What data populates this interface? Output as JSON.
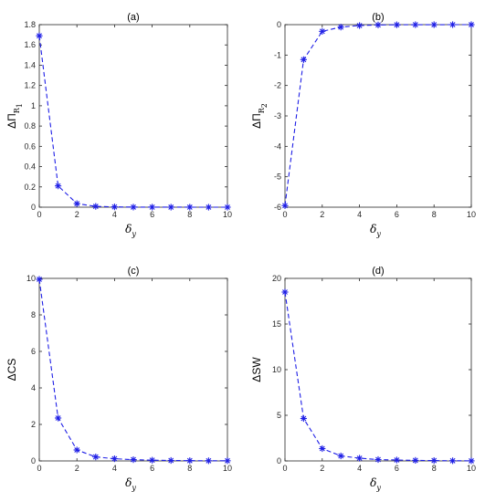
{
  "chart_data": [
    {
      "type": "line",
      "title": "(a)",
      "xlabel": "δ",
      "xlabel_sub": "y",
      "ylabel": "ΔΠ",
      "ylabel_sub": "R",
      "ylabel_subsub": "1",
      "x": [
        0,
        1,
        2,
        3,
        4,
        5,
        6,
        7,
        8,
        9,
        10
      ],
      "series": [
        {
          "values": [
            1.69,
            0.21,
            0.035,
            0.008,
            0.003,
            0.001,
            0.0005,
            0.0002,
            0.0001,
            0,
            0
          ]
        }
      ],
      "xlim": [
        0,
        10
      ],
      "ylim": [
        0,
        1.8
      ],
      "xticks": [
        0,
        2,
        4,
        6,
        8,
        10
      ],
      "yticks": [
        0,
        0.2,
        0.4,
        0.6,
        0.8,
        1,
        1.2,
        1.4,
        1.6,
        1.8
      ],
      "ytick_labels": [
        "0",
        "0.2",
        "0.4",
        "0.6",
        "0.8",
        "1",
        "1.2",
        "1.4",
        "1.6",
        "1.8"
      ],
      "grid": false,
      "line_style": "dashed",
      "marker": "asterisk",
      "color": "#1f1fe6"
    },
    {
      "type": "line",
      "title": "(b)",
      "xlabel": "δ",
      "xlabel_sub": "y",
      "ylabel": "ΔΠ",
      "ylabel_sub": "R",
      "ylabel_subsub": "2",
      "x": [
        0,
        1,
        2,
        3,
        4,
        5,
        6,
        7,
        8,
        9,
        10
      ],
      "series": [
        {
          "values": [
            -5.95,
            -1.15,
            -0.22,
            -0.08,
            -0.03,
            -0.01,
            -0.005,
            -0.002,
            -0.001,
            0,
            0
          ]
        }
      ],
      "xlim": [
        0,
        10
      ],
      "ylim": [
        -6,
        0
      ],
      "xticks": [
        0,
        2,
        4,
        6,
        8,
        10
      ],
      "yticks": [
        -6,
        -5,
        -4,
        -3,
        -2,
        -1,
        0
      ],
      "ytick_labels": [
        "-6",
        "-5",
        "-4",
        "-3",
        "-2",
        "-1",
        "0"
      ],
      "grid": false,
      "line_style": "dashed",
      "marker": "asterisk",
      "color": "#1f1fe6"
    },
    {
      "type": "line",
      "title": "(c)",
      "xlabel": "δ",
      "xlabel_sub": "y",
      "ylabel": "ΔCS",
      "x": [
        0,
        1,
        2,
        3,
        4,
        5,
        6,
        7,
        8,
        9,
        10
      ],
      "series": [
        {
          "values": [
            9.95,
            2.35,
            0.6,
            0.22,
            0.12,
            0.07,
            0.04,
            0.025,
            0.015,
            0.01,
            0.008
          ]
        }
      ],
      "xlim": [
        0,
        10
      ],
      "ylim": [
        0,
        10
      ],
      "xticks": [
        0,
        2,
        4,
        6,
        8,
        10
      ],
      "yticks": [
        0,
        2,
        4,
        6,
        8,
        10
      ],
      "ytick_labels": [
        "0",
        "2",
        "4",
        "6",
        "8",
        "10"
      ],
      "grid": false,
      "line_style": "dashed",
      "marker": "asterisk",
      "color": "#1f1fe6"
    },
    {
      "type": "line",
      "title": "(d)",
      "xlabel": "δ",
      "xlabel_sub": "y",
      "ylabel": "ΔSW",
      "x": [
        0,
        1,
        2,
        3,
        4,
        5,
        6,
        7,
        8,
        9,
        10
      ],
      "series": [
        {
          "values": [
            18.5,
            4.65,
            1.35,
            0.55,
            0.3,
            0.15,
            0.1,
            0.06,
            0.04,
            0.02,
            0.01
          ]
        }
      ],
      "xlim": [
        0,
        10
      ],
      "ylim": [
        0,
        20
      ],
      "xticks": [
        0,
        2,
        4,
        6,
        8,
        10
      ],
      "yticks": [
        0,
        5,
        10,
        15,
        20
      ],
      "ytick_labels": [
        "0",
        "5",
        "10",
        "15",
        "20"
      ],
      "grid": false,
      "line_style": "dashed",
      "marker": "asterisk",
      "color": "#1f1fe6"
    }
  ]
}
